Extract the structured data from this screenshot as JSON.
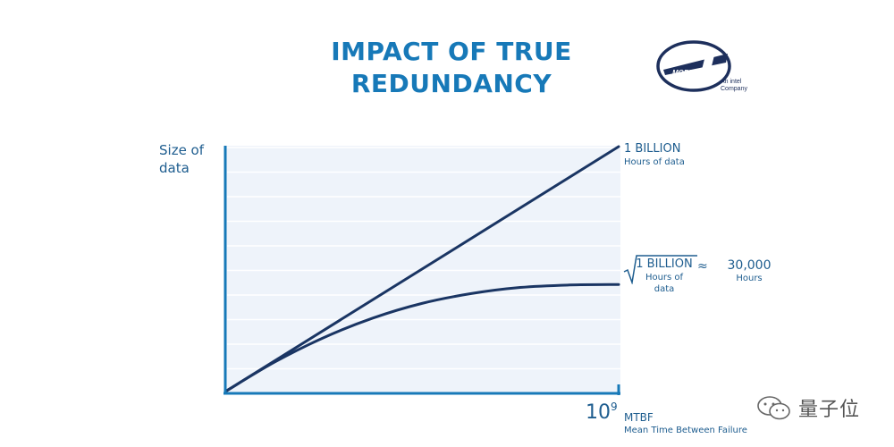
{
  "title_line1": "IMPACT OF TRUE",
  "title_line2": "REDUNDANCY",
  "logo": {
    "wordmark": "MOBILEYE",
    "tagline_line1": "An intel",
    "tagline_line2": "Company"
  },
  "colors": {
    "title": "#1779b8",
    "text": "#1e5d8f",
    "line": "#1a3563",
    "grid_bg": "#eef3fa",
    "grid_line": "#ffffff",
    "axis": "#1779b8"
  },
  "chart_data": {
    "type": "line",
    "ylabel": "Size of data",
    "xlabel": "MTBF",
    "xlabel_sub": "Mean Time Between Failure",
    "xtick_base": "10",
    "xtick_exp": "9",
    "xlim": [
      0,
      1000000000
    ],
    "grid": true,
    "series": [
      {
        "name": "linear",
        "x": [
          0,
          1000000000
        ],
        "y": [
          0,
          1000000000
        ],
        "label_big": "1 BILLION",
        "label_small": "Hours of data"
      },
      {
        "name": "sqrt",
        "x": [
          0,
          125000000,
          250000000,
          375000000,
          500000000,
          625000000,
          750000000,
          875000000,
          1000000000
        ],
        "y": [
          0,
          120000000,
          220000000,
          300000000,
          360000000,
          400000000,
          425000000,
          435000000,
          437000000
        ],
        "label_big": "1 BILLION",
        "label_small": "Hours of data",
        "approx_symbol": "≈",
        "approx_value": "30,000",
        "approx_unit": "Hours"
      }
    ]
  },
  "watermark": {
    "text": "量子位"
  }
}
